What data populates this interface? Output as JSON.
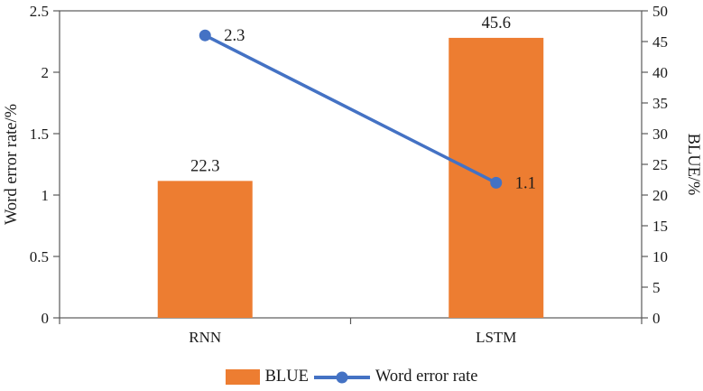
{
  "chart_data": {
    "type": "bar+line",
    "title": "",
    "categories": [
      "RNN",
      "LSTM"
    ],
    "series": [
      {
        "name": "BLUE",
        "type": "bar",
        "axis": "right",
        "values": [
          22.3,
          45.6
        ],
        "color": "#ED7D31"
      },
      {
        "name": "Word error rate",
        "type": "line",
        "axis": "left",
        "values": [
          2.3,
          1.1
        ],
        "color": "#4472C4"
      }
    ],
    "data_labels": {
      "bar": [
        "22.3",
        "45.6"
      ],
      "line": [
        "2.3",
        "1.1"
      ]
    },
    "left_axis": {
      "label": "Word error rate/%",
      "min": 0,
      "max": 2.5,
      "step": 0.5,
      "ticks": [
        "0",
        "0.5",
        "1",
        "1.5",
        "2",
        "2.5"
      ]
    },
    "right_axis": {
      "label": "BLUE/%",
      "min": 0,
      "max": 50,
      "step": 5,
      "ticks": [
        "0",
        "5",
        "10",
        "15",
        "20",
        "25",
        "30",
        "35",
        "40",
        "45",
        "50"
      ]
    },
    "grid": false,
    "plot_border": true,
    "axis_line_color": "#595959",
    "text_color": "#1a1a1a",
    "legend_position": "bottom",
    "legend": [
      {
        "label": "BLUE",
        "marker": "bar",
        "color": "#ED7D31"
      },
      {
        "label": "Word error rate",
        "marker": "line-dot",
        "color": "#4472C4"
      }
    ]
  }
}
